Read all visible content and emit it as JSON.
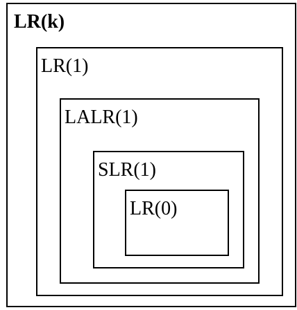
{
  "diagram": {
    "outer": {
      "label": "LR(k)"
    },
    "level2": {
      "label": "LR(1)"
    },
    "level3": {
      "label": "LALR(1)"
    },
    "level4": {
      "label": "SLR(1)"
    },
    "inner": {
      "label": "LR(0)"
    }
  }
}
